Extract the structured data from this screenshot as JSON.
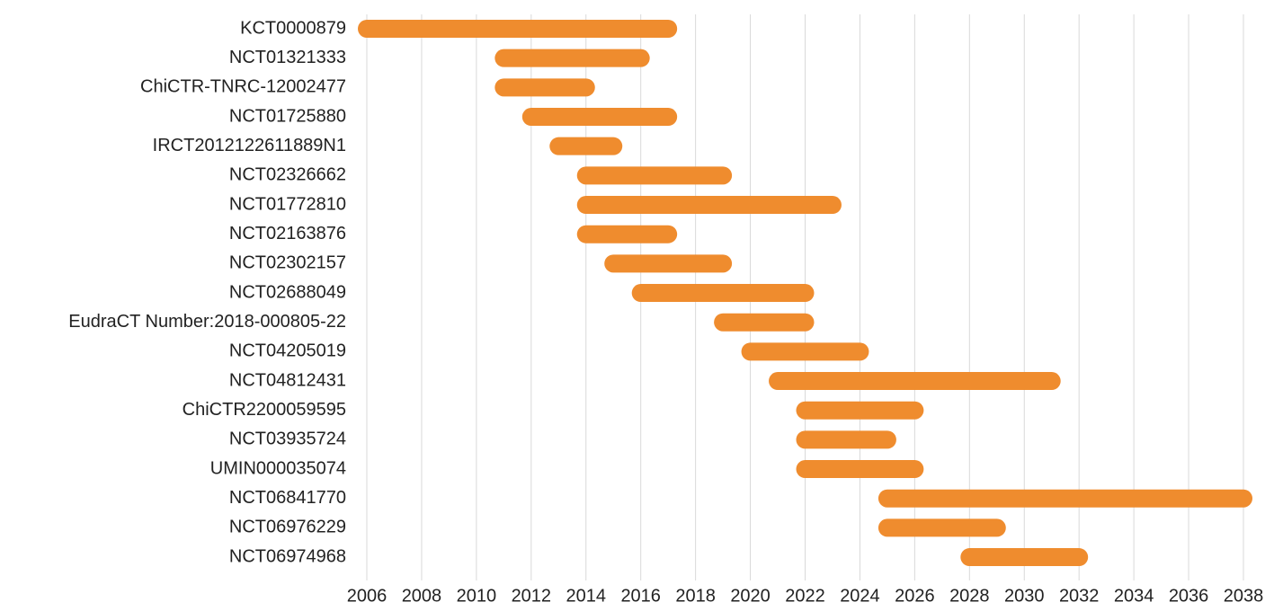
{
  "chart_data": {
    "type": "range-bar",
    "categories": [
      "KCT0000879",
      "NCT01321333",
      "ChiCTR-TNRC-12002477",
      "NCT01725880",
      "IRCT2012122611889N1",
      "NCT02326662",
      "NCT01772810",
      "NCT02163876",
      "NCT02302157",
      "NCT02688049",
      "EudraCT Number:2018-000805-22",
      "NCT04205019",
      "NCT04812431",
      "ChiCTR2200059595",
      "NCT03935724",
      "UMIN000035074",
      "NCT06841770",
      "NCT06976229",
      "NCT06974968"
    ],
    "start": [
      2006,
      2011,
      2011,
      2012,
      2013,
      2014,
      2014,
      2014,
      2015,
      2016,
      2019,
      2020,
      2021,
      2022,
      2022,
      2022,
      2025,
      2025,
      2028
    ],
    "end": [
      2017,
      2016,
      2014,
      2017,
      2015,
      2019,
      2023,
      2017,
      2019,
      2022,
      2022,
      2024,
      2031,
      2026,
      2025,
      2026,
      2038,
      2029,
      2032
    ],
    "color": "#ef8c2e",
    "xlim": [
      2006,
      2038
    ],
    "xticks": [
      2006,
      2008,
      2010,
      2012,
      2014,
      2016,
      2018,
      2020,
      2022,
      2024,
      2026,
      2028,
      2030,
      2032,
      2034,
      2036,
      2038
    ],
    "grid": true
  }
}
